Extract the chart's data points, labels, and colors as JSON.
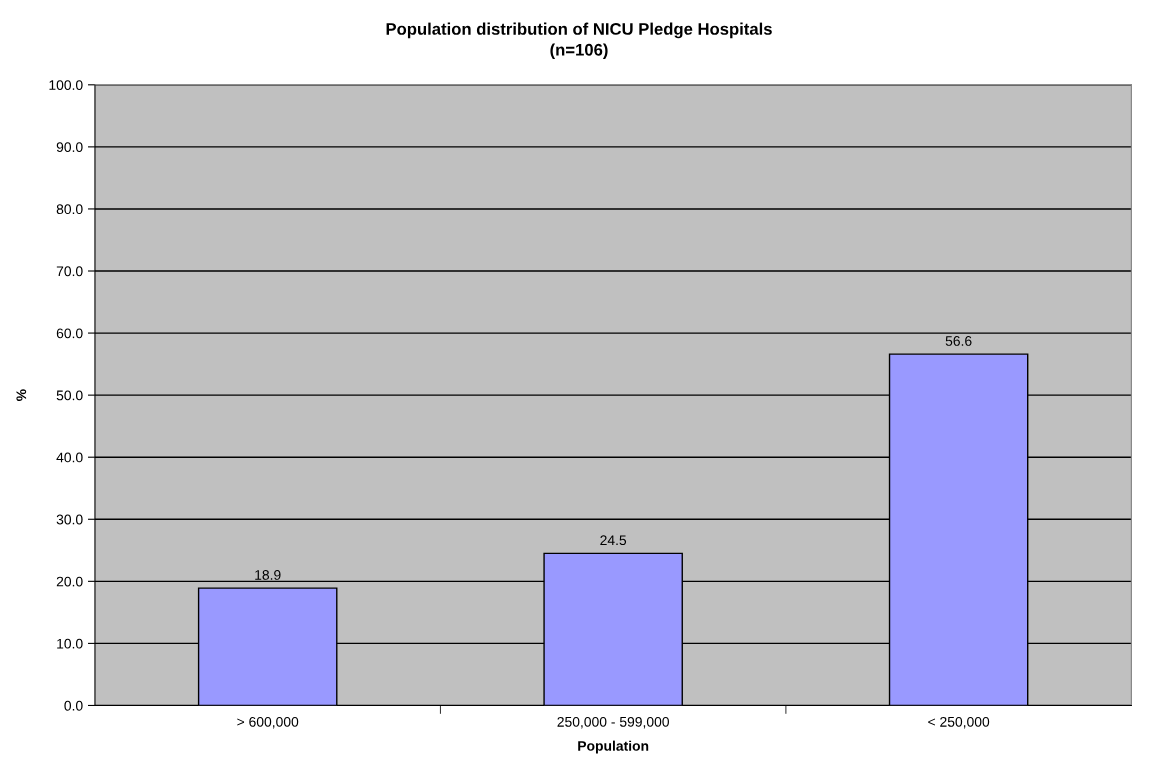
{
  "chart_data": {
    "type": "bar",
    "title": "Population distribution of NICU Pledge Hospitals",
    "subtitle": "(n=106)",
    "xlabel": "Population",
    "ylabel": "%",
    "categories": [
      "> 600,000",
      "250,000 - 599,000",
      "< 250,000"
    ],
    "values": [
      18.9,
      24.5,
      56.6
    ],
    "color": "#9999ff",
    "data_labels": true,
    "grid": "y",
    "legend": false,
    "ylim": [
      0,
      100
    ],
    "yticks": [
      {
        "value": 0,
        "label": "0.0"
      },
      {
        "value": 10,
        "label": "10.0"
      },
      {
        "value": 20,
        "label": "20.0"
      },
      {
        "value": 30,
        "label": "30.0"
      },
      {
        "value": 40,
        "label": "40.0"
      },
      {
        "value": 50,
        "label": "50.0"
      },
      {
        "value": 60,
        "label": "60.0"
      },
      {
        "value": 70,
        "label": "70.0"
      },
      {
        "value": 80,
        "label": "80.0"
      },
      {
        "value": 90,
        "label": "90.0"
      },
      {
        "value": 100,
        "label": "100.0"
      }
    ]
  }
}
